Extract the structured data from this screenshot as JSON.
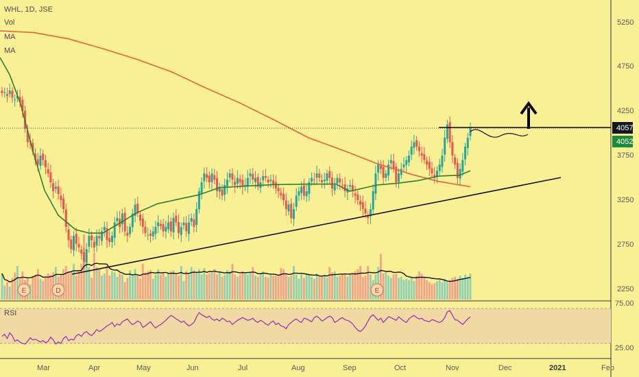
{
  "legend": {
    "symbol": "WHL, 1D, JSE",
    "vol": "Vol",
    "ma1": "MA",
    "ma2": "MA",
    "rsi": "RSI"
  },
  "colors": {
    "background": "#f9ef95",
    "up": "#26a69a",
    "down": "#ef5350",
    "vol_up": "#8fd0b4",
    "vol_down": "#f2a38a",
    "ma_short": "#2e7d32",
    "ma_long": "#e8603c",
    "rsi_line": "#9c27b0",
    "rsi_band": "#f1d9a4",
    "dark_label": "#131722",
    "green_label": "#1b8a3a"
  },
  "price_axis": {
    "ticks": [
      "5250",
      "4750",
      "4250",
      "3750",
      "3250",
      "2750",
      "2250"
    ],
    "last_price_dark": "4057",
    "last_price_green": "4052"
  },
  "rsi_axis": {
    "ticks": [
      "75.00",
      "25.00"
    ]
  },
  "time_axis": {
    "ticks": [
      "Mar",
      "Apr",
      "May",
      "Jun",
      "Jul",
      "Aug",
      "Sep",
      "Oct",
      "Nov",
      "Dec",
      "2021",
      "Feb"
    ]
  },
  "event_markers": [
    "E",
    "D",
    "E"
  ],
  "chart_data": {
    "type": "candlestick",
    "title": "WHL, 1D, JSE",
    "ylim": [
      2150,
      5450
    ],
    "price_line": 4057,
    "last_close": 4052,
    "closes": [
      4450,
      4460,
      4420,
      4480,
      4400,
      4380,
      4420,
      4350,
      4250,
      4050,
      3900,
      3900,
      3800,
      3700,
      3650,
      3750,
      3700,
      3620,
      3550,
      3450,
      3350,
      3400,
      3320,
      3250,
      3150,
      2950,
      2800,
      2700,
      2850,
      2760,
      2720,
      2650,
      2560,
      2700,
      2850,
      2800,
      2720,
      2850,
      2820,
      2900,
      2950,
      2800,
      2780,
      2850,
      3000,
      3050,
      2950,
      3100,
      2900,
      2850,
      2950,
      3100,
      3200,
      3100,
      3020,
      2950,
      2880,
      2860,
      2850,
      2900,
      2950,
      3000,
      2960,
      2900,
      2950,
      3000,
      2900,
      3050,
      3000,
      2880,
      2950,
      3000,
      2900,
      3000,
      3050,
      2950,
      3150,
      3350,
      3450,
      3550,
      3500,
      3450,
      3550,
      3480,
      3350,
      3400,
      3300,
      3420,
      3480,
      3550,
      3480,
      3420,
      3500,
      3450,
      3400,
      3420,
      3500,
      3550,
      3480,
      3500,
      3400,
      3450,
      3520,
      3500,
      3450,
      3480,
      3420,
      3380,
      3350,
      3300,
      3250,
      3150,
      3200,
      3050,
      3150,
      3300,
      3350,
      3400,
      3300,
      3350,
      3450,
      3500,
      3480,
      3550,
      3500,
      3450,
      3480,
      3550,
      3500,
      3380,
      3420,
      3500,
      3450,
      3420,
      3350,
      3380,
      3420,
      3350,
      3300,
      3250,
      3200,
      3150,
      3100,
      3050,
      3150,
      3350,
      3550,
      3650,
      3600,
      3500,
      3550,
      3650,
      3700,
      3600,
      3450,
      3550,
      3600,
      3650,
      3700,
      3750,
      3850,
      3900,
      3850,
      3800,
      3750,
      3700,
      3650,
      3600,
      3550,
      3500,
      3580,
      3650,
      3750,
      3950,
      4100,
      3900,
      3750,
      3650,
      3500,
      3600,
      3700,
      3850,
      3950,
      4052
    ],
    "ma_short": {
      "start": 4850,
      "points": [
        [
          0,
          4850
        ],
        [
          14,
          4660
        ],
        [
          30,
          4330
        ],
        [
          48,
          3800
        ],
        [
          65,
          3360
        ],
        [
          85,
          3080
        ],
        [
          110,
          2920
        ],
        [
          130,
          2880
        ],
        [
          150,
          2880
        ],
        [
          172,
          2980
        ],
        [
          200,
          3110
        ],
        [
          230,
          3210
        ],
        [
          260,
          3260
        ],
        [
          290,
          3310
        ],
        [
          320,
          3390
        ],
        [
          350,
          3405
        ],
        [
          400,
          3425
        ],
        [
          450,
          3430
        ],
        [
          490,
          3430
        ],
        [
          510,
          3350
        ],
        [
          550,
          3420
        ],
        [
          580,
          3440
        ],
        [
          610,
          3470
        ],
        [
          640,
          3520
        ],
        [
          670,
          3530
        ],
        [
          686,
          3580
        ]
      ]
    },
    "ma_long": {
      "points": [
        [
          0,
          5150
        ],
        [
          50,
          5130
        ],
        [
          100,
          5060
        ],
        [
          150,
          4950
        ],
        [
          200,
          4830
        ],
        [
          250,
          4690
        ],
        [
          300,
          4510
        ],
        [
          350,
          4340
        ],
        [
          400,
          4150
        ],
        [
          450,
          3950
        ],
        [
          500,
          3810
        ],
        [
          550,
          3660
        ],
        [
          600,
          3540
        ],
        [
          640,
          3460
        ],
        [
          686,
          3400
        ]
      ]
    },
    "trend_lines": [
      {
        "type": "support",
        "from": [
          105,
          2520
        ],
        "to": [
          818,
          3500
        ]
      },
      {
        "type": "resistance",
        "from": [
          640,
          4057
        ],
        "to": [
          890,
          4057
        ]
      }
    ],
    "projection": "dashed wave toward breakout above 4057",
    "volume": [
      240,
      130,
      160,
      120,
      200,
      250,
      310,
      190,
      260,
      180,
      200,
      140,
      220,
      230,
      280,
      190,
      170,
      210,
      240,
      230,
      250,
      300,
      210,
      230,
      280,
      310,
      260,
      260,
      330,
      220,
      250,
      330,
      600,
      380,
      300,
      200,
      430,
      300,
      280,
      220,
      240,
      310,
      220,
      260,
      250,
      210,
      240,
      230,
      160,
      200,
      270,
      220,
      280,
      220,
      190,
      330,
      250,
      260,
      270,
      190,
      230,
      280,
      230,
      250,
      210,
      240,
      260,
      270,
      230,
      220,
      310,
      170,
      260,
      230,
      300,
      270,
      250,
      280,
      230,
      290,
      230,
      240,
      250,
      280,
      230,
      260,
      210,
      230,
      270,
      260,
      330,
      230,
      210,
      230,
      260,
      240,
      230,
      250,
      300,
      220,
      210,
      240,
      260,
      210,
      200,
      230,
      220,
      220,
      230,
      290,
      280,
      230,
      210,
      220,
      310,
      230,
      190,
      230,
      200,
      240,
      230,
      210,
      190,
      240,
      210,
      220,
      230,
      200,
      300,
      250,
      260,
      210,
      220,
      240,
      230,
      210,
      230,
      240,
      260,
      280,
      310,
      210,
      220,
      310,
      230,
      180,
      230,
      300,
      420,
      240,
      250,
      220,
      200,
      230,
      240,
      200,
      210,
      180,
      190,
      180,
      200,
      170,
      220,
      260,
      240,
      210,
      180,
      160,
      140,
      150,
      170,
      180,
      160,
      190,
      160,
      180,
      200,
      210,
      190,
      220,
      200,
      230,
      210,
      240
    ],
    "rsi": [
      35,
      38,
      32,
      40,
      36,
      28,
      30,
      27,
      25,
      24,
      28,
      33,
      30,
      31,
      29,
      27,
      29,
      26,
      28,
      34,
      30,
      24,
      27,
      25,
      32,
      35,
      29,
      31,
      30,
      36,
      38,
      35,
      40,
      42,
      38,
      36,
      40,
      45,
      42,
      44,
      47,
      50,
      52,
      55,
      49,
      53,
      51,
      56,
      58,
      60,
      55,
      52,
      54,
      57,
      55,
      48,
      50,
      53,
      56,
      51,
      47,
      50,
      52,
      55,
      58,
      62,
      65,
      63,
      60,
      58,
      55,
      57,
      53,
      50,
      52,
      55,
      63,
      69,
      66,
      64,
      62,
      64,
      60,
      58,
      60,
      57,
      61,
      59,
      56,
      57,
      52,
      55,
      58,
      60,
      62,
      60,
      58,
      59,
      61,
      57,
      55,
      58,
      56,
      53,
      51,
      55,
      57,
      52,
      54,
      50,
      49,
      46,
      52,
      55,
      58,
      60,
      57,
      55,
      61,
      60,
      58,
      56,
      62,
      64,
      61,
      57,
      59,
      62,
      64,
      62,
      55,
      57,
      60,
      62,
      59,
      58,
      56,
      53,
      48,
      44,
      42,
      45,
      50,
      57,
      63,
      66,
      62,
      58,
      61,
      55,
      59,
      63,
      62,
      60,
      58,
      63,
      60,
      57,
      55,
      60,
      63,
      65,
      62,
      60,
      61,
      58,
      57,
      56,
      59,
      58,
      56,
      55,
      57,
      62,
      70,
      72,
      65,
      59,
      58,
      55,
      52,
      56,
      60,
      63,
      65,
      66
    ]
  }
}
